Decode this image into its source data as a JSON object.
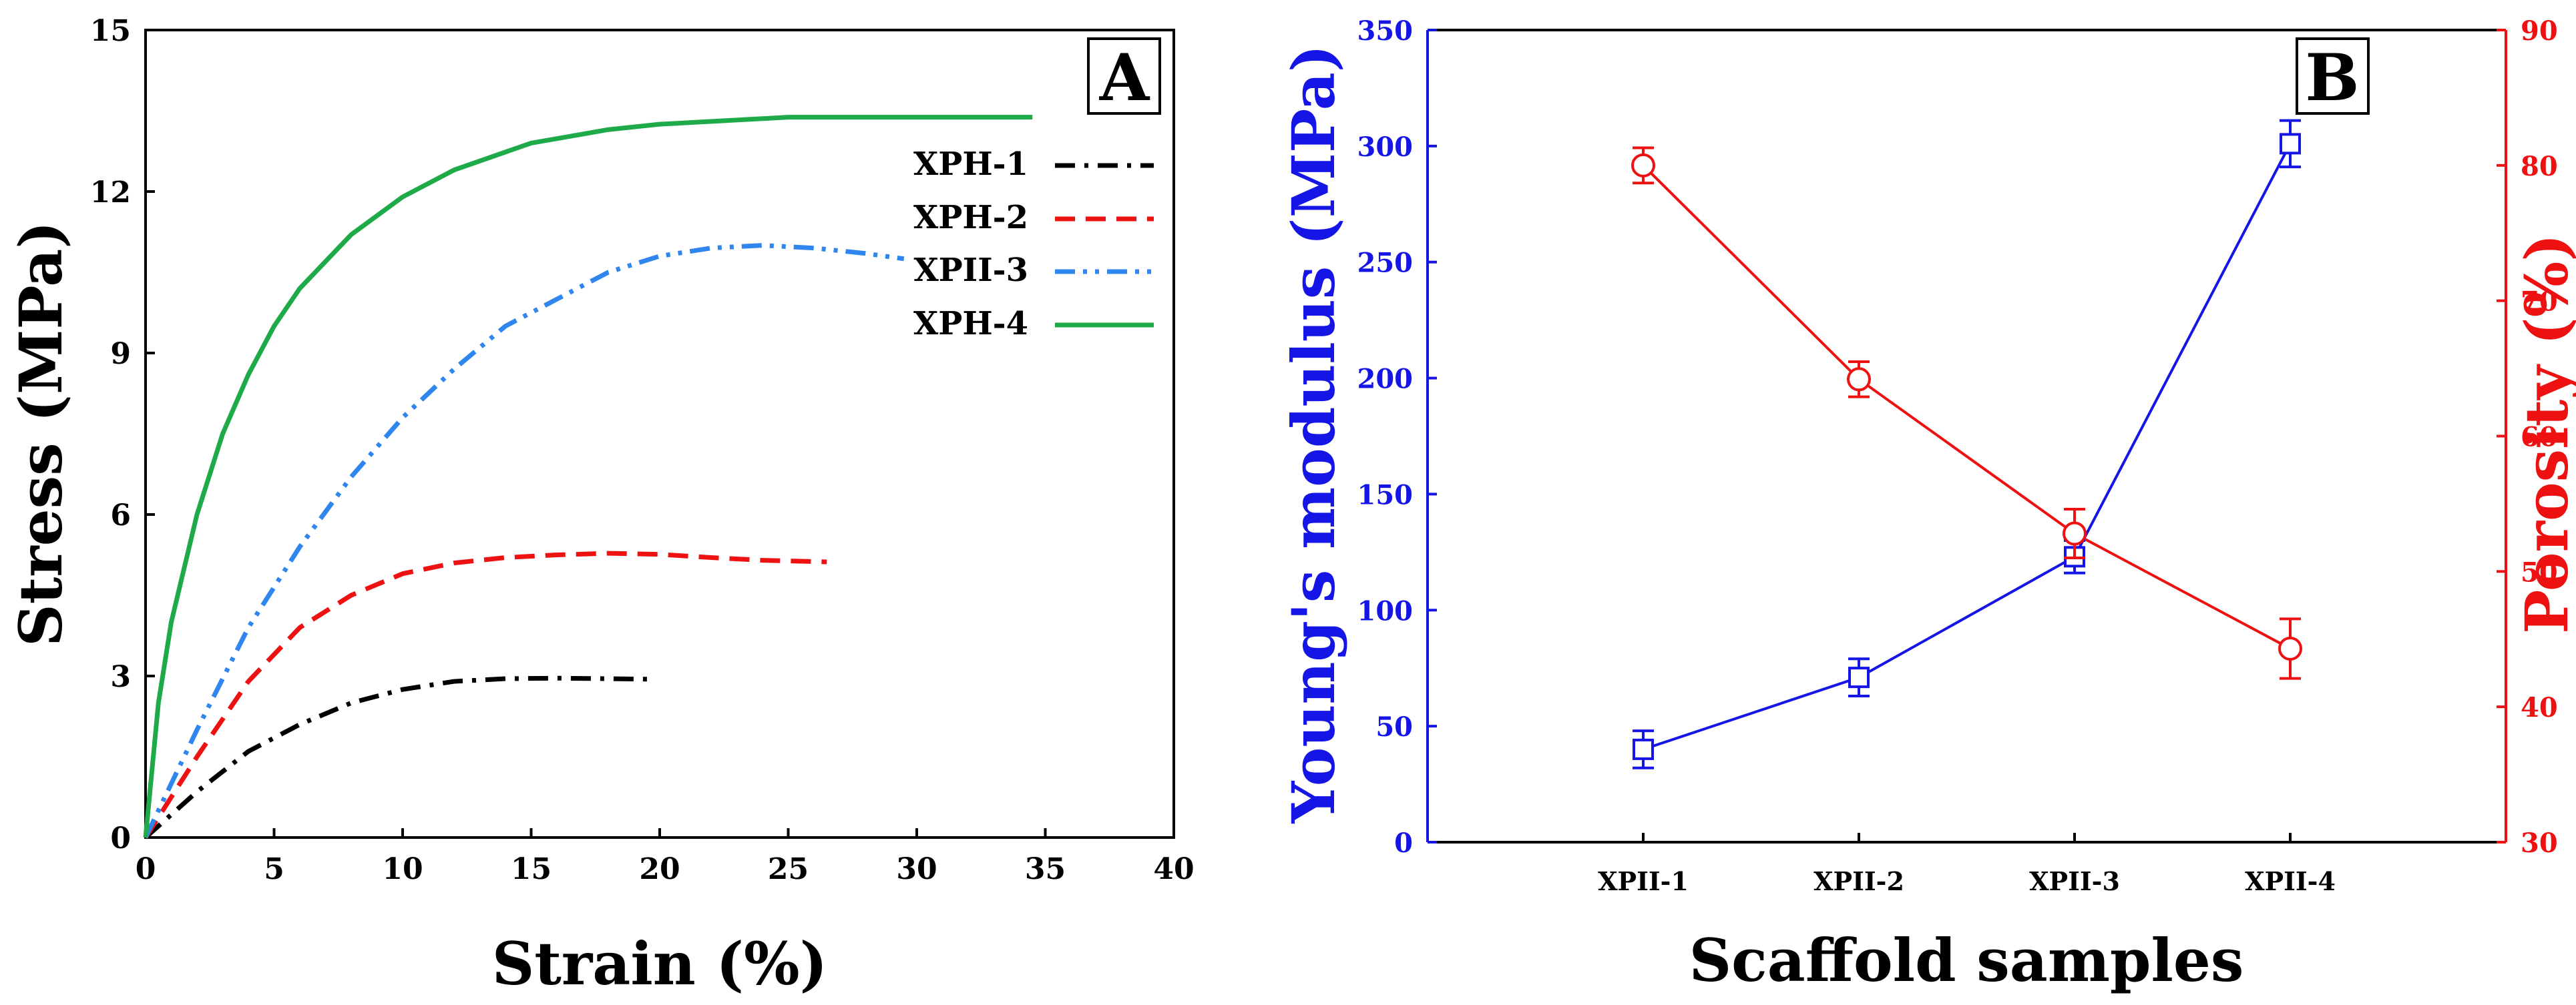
{
  "colors": {
    "blue": "#1515e6",
    "red": "#ee1111",
    "green": "#1faa4a",
    "black": "#000000",
    "lightblue": "#2f86ee"
  },
  "chart_data": [
    {
      "type": "line",
      "panel": "A",
      "title": "",
      "xlabel": "Strain (%)",
      "ylabel": "Stress (MPa)",
      "xlim": [
        0,
        40
      ],
      "ylim": [
        0,
        15
      ],
      "xticks": [
        0,
        5,
        10,
        15,
        20,
        25,
        30,
        35,
        40
      ],
      "yticks": [
        0,
        3,
        6,
        9,
        12,
        15
      ],
      "legend_position": "top-right",
      "series": [
        {
          "name": "XPH-1",
          "color": "#000000",
          "dash": "dashdot",
          "x": [
            0,
            2,
            4,
            6,
            8,
            10,
            12,
            14,
            16,
            18,
            19.8
          ],
          "y": [
            0,
            0.85,
            1.6,
            2.1,
            2.5,
            2.75,
            2.9,
            2.95,
            2.96,
            2.95,
            2.94
          ]
        },
        {
          "name": "XPH-2",
          "color": "#ee1111",
          "dash": "dashed",
          "x": [
            0,
            2,
            4,
            6,
            8,
            10,
            12,
            14,
            16,
            18,
            20,
            22,
            24,
            26.5
          ],
          "y": [
            0,
            1.5,
            2.9,
            3.9,
            4.5,
            4.9,
            5.1,
            5.2,
            5.25,
            5.28,
            5.26,
            5.2,
            5.15,
            5.12
          ]
        },
        {
          "name": "XPII-3",
          "color": "#2f86ee",
          "dash": "dashdotdot",
          "x": [
            0,
            2,
            4,
            6,
            8,
            10,
            12,
            14,
            16,
            18,
            20,
            22,
            24,
            26,
            28,
            29.5
          ],
          "y": [
            0,
            2.0,
            3.9,
            5.4,
            6.7,
            7.8,
            8.7,
            9.5,
            10.0,
            10.5,
            10.8,
            10.95,
            11.0,
            10.95,
            10.85,
            10.75
          ]
        },
        {
          "name": "XPH-4",
          "color": "#1faa4a",
          "dash": "solid",
          "x": [
            0,
            0.5,
            1,
            2,
            3,
            4,
            5,
            6,
            8,
            10,
            12,
            15,
            18,
            20,
            25,
            30,
            34.5
          ],
          "y": [
            0,
            2.5,
            4.0,
            6.0,
            7.5,
            8.6,
            9.5,
            10.2,
            11.2,
            11.9,
            12.4,
            12.9,
            13.15,
            13.25,
            13.38,
            13.38,
            13.38
          ]
        }
      ]
    },
    {
      "type": "line",
      "panel": "B",
      "title": "",
      "xlabel": "Scaffold samples",
      "ylabel_left": "Young's modulus (MPa)",
      "ylabel_right": "Porosity (%)",
      "categories": [
        "XPII-1",
        "XPII-2",
        "XPII-3",
        "XPII-4"
      ],
      "ylim_left": [
        0,
        350
      ],
      "ylim_right": [
        30,
        90
      ],
      "yticks_left": [
        0,
        50,
        100,
        150,
        200,
        250,
        300,
        350
      ],
      "yticks_right": [
        30,
        40,
        50,
        60,
        70,
        80,
        90
      ],
      "series": [
        {
          "name": "Young's modulus",
          "axis": "left",
          "color": "#1515e6",
          "marker": "square",
          "values": [
            40,
            71,
            123,
            301
          ],
          "errors": [
            8,
            8,
            7,
            10
          ]
        },
        {
          "name": "Porosity",
          "axis": "right",
          "color": "#ee1111",
          "marker": "circle",
          "values": [
            80,
            64.2,
            52.8,
            44.3
          ],
          "errors": [
            1.3,
            1.3,
            1.8,
            2.2
          ]
        }
      ]
    }
  ]
}
